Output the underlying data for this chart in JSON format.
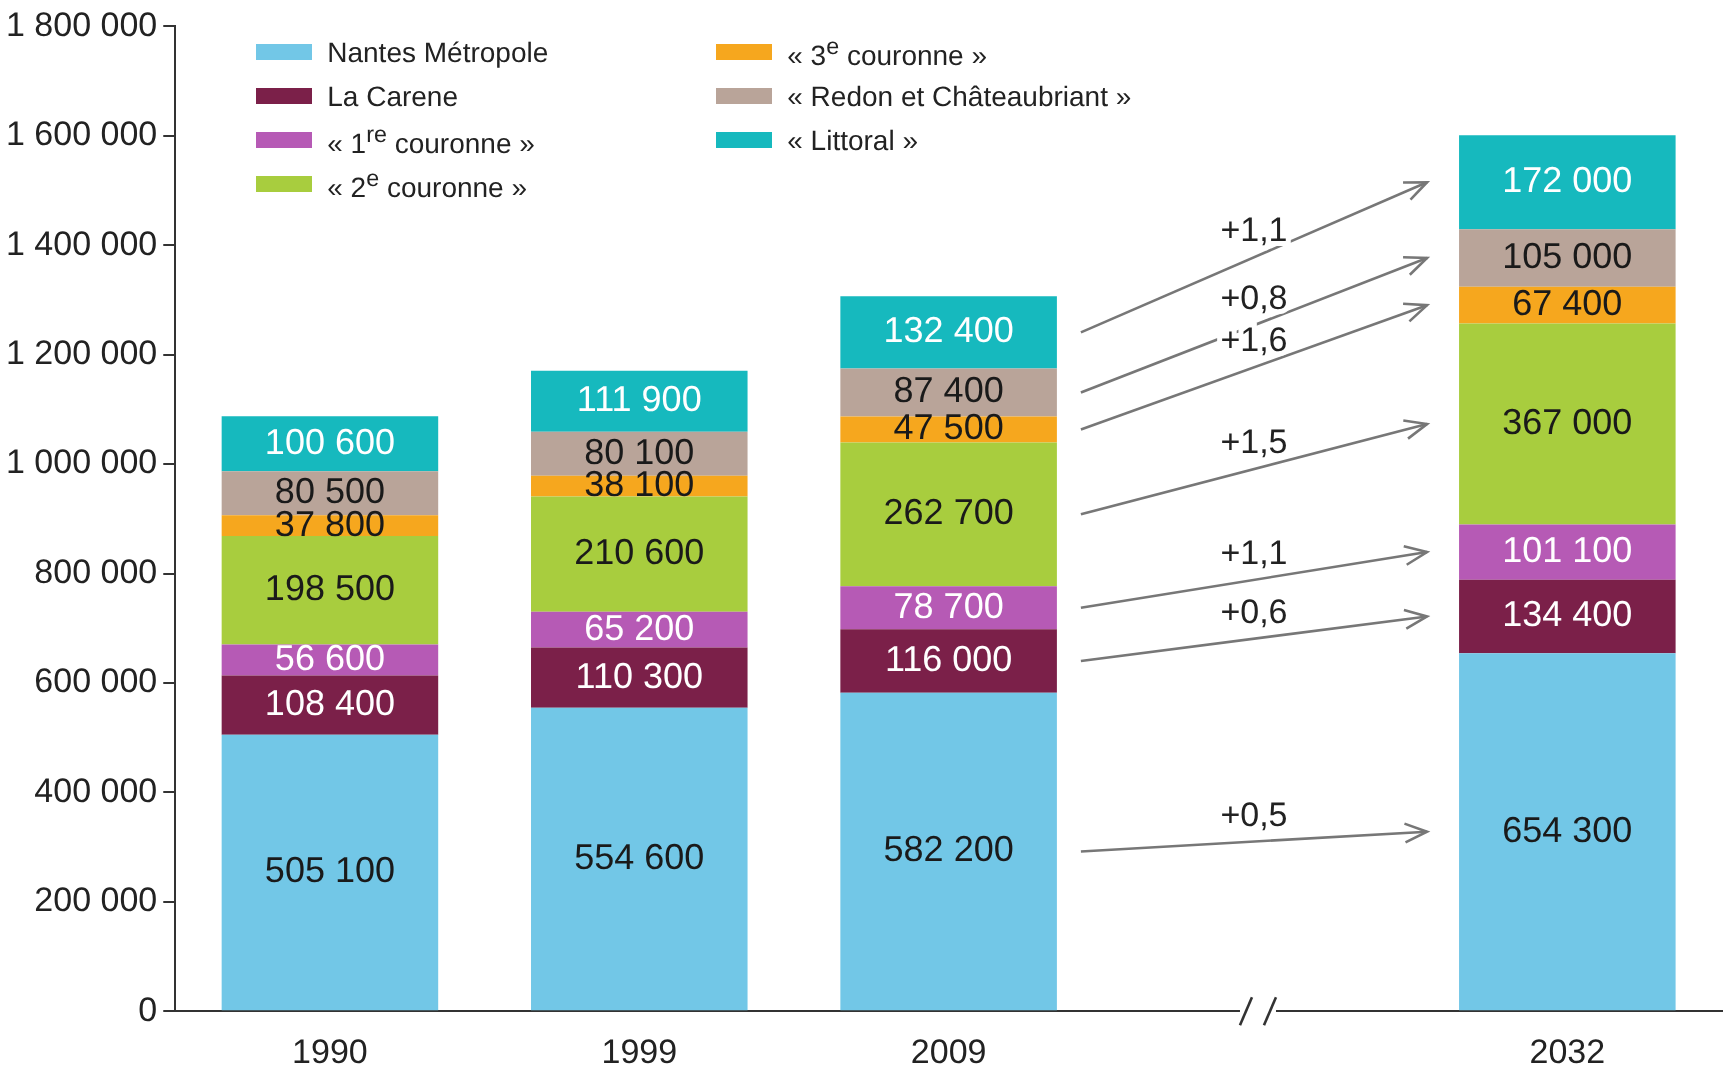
{
  "chart_data": {
    "type": "bar",
    "stacked": true,
    "categories": [
      "1990",
      "1999",
      "2009",
      null,
      "2032"
    ],
    "series": [
      {
        "name": "Nantes Métropole",
        "color": "#72c7e7",
        "values": [
          505100,
          554600,
          582200,
          null,
          654300
        ],
        "value_labels": [
          "505 100",
          "554 600",
          "582 200",
          null,
          "654 300"
        ]
      },
      {
        "name": "La Carene",
        "color": "#7b2049",
        "values": [
          108400,
          110300,
          116000,
          null,
          134400
        ],
        "value_labels": [
          "108 400",
          "110 300",
          "116 000",
          null,
          "134 400"
        ]
      },
      {
        "name": "« 1$^{re}$ couronne »",
        "color": "#b65ab5",
        "values": [
          56600,
          65200,
          78700,
          null,
          101100
        ],
        "value_labels": [
          "56 600",
          "65 200",
          "78 700",
          null,
          "101 100"
        ]
      },
      {
        "name": "« 2$^{e}$ couronne »",
        "color": "#a8cd3e",
        "values": [
          198500,
          210600,
          262700,
          null,
          367000
        ],
        "value_labels": [
          "198 500",
          "210 600",
          "262 700",
          null,
          "367 000"
        ]
      },
      {
        "name": "« 3$^{e}$ couronne »",
        "color": "#f6a71e",
        "values": [
          37800,
          38100,
          47500,
          null,
          67400
        ],
        "value_labels": [
          "37 800",
          "38 100",
          "47 500",
          null,
          "67 400"
        ]
      },
      {
        "name": "« Redon et Châteaubriant »",
        "color": "#b9a499",
        "values": [
          80500,
          80100,
          87400,
          null,
          105000
        ],
        "value_labels": [
          "80 500",
          "80 100",
          "87 400",
          null,
          "105 000"
        ]
      },
      {
        "name": "« Littoral »",
        "color": "#16b9be",
        "values": [
          100600,
          111900,
          132400,
          null,
          172000
        ],
        "value_labels": [
          "100 600",
          "111 900",
          "132 400",
          null,
          "172 000"
        ]
      }
    ],
    "ylim": [
      0,
      1800000
    ],
    "yticks": [
      {
        "value": 0,
        "label": "0"
      },
      {
        "value": 200000,
        "label": "200 000"
      },
      {
        "value": 400000,
        "label": "400 000"
      },
      {
        "value": 600000,
        "label": "600 000"
      },
      {
        "value": 800000,
        "label": "800 000"
      },
      {
        "value": 1000000,
        "label": "1 000 000"
      },
      {
        "value": 1200000,
        "label": "1 200 000"
      },
      {
        "value": 1400000,
        "label": "1 400 000"
      },
      {
        "value": 1600000,
        "label": "1 600 000"
      },
      {
        "value": 1800000,
        "label": "1 800 000"
      }
    ],
    "legend": "top left",
    "annotations": [
      "+1,1",
      "+0,8",
      "+1,6",
      "+1,5",
      "+1,1",
      "+0,6",
      "+0,5"
    ]
  }
}
